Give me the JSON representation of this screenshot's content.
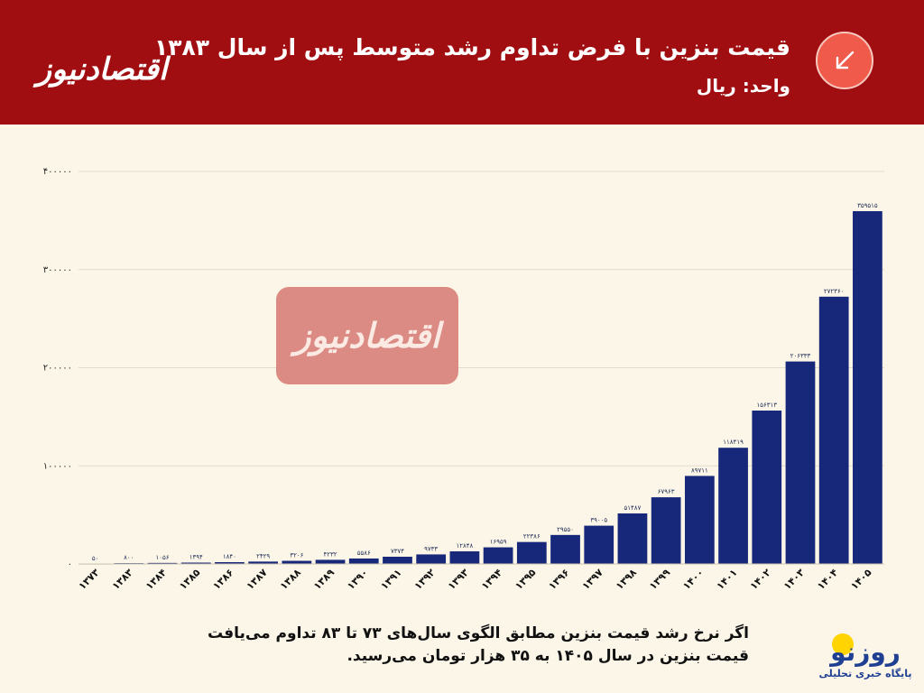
{
  "header": {
    "title": "قیمت بنزین با فرض تداوم رشد متوسط پس از سال ۱۳۸۳",
    "subtitle": "واحد: ریال",
    "logo_text": "اقتصادنیوز",
    "badge_icon": "arrow-down-left-icon"
  },
  "watermark": {
    "text": "اقتصادنیوز"
  },
  "caption": {
    "line1": "اگر نرخ رشد قیمت بنزین مطابق الگوی سال‌های ۷۳ تا ۸۳ تداوم می‌یافت",
    "line2": "قیمت بنزین در سال ۱۴۰۵ به ۳۵ هزار تومان می‌رسید."
  },
  "footer_logo": {
    "brand": "روزنو",
    "tagline": "پایگاه خبری تحلیلی"
  },
  "colors": {
    "header_bg": "#a10e12",
    "bar": "#17287a",
    "background": "#fbf6e8",
    "badge": "#ef5a4b"
  },
  "chart_data": {
    "type": "bar",
    "categories": [
      "۱۳۷۳",
      "۱۳۸۳",
      "۱۳۸۴",
      "۱۳۸۵",
      "۱۳۸۶",
      "۱۳۸۷",
      "۱۳۸۸",
      "۱۳۸۹",
      "۱۳۹۰",
      "۱۳۹۱",
      "۱۳۹۲",
      "۱۳۹۳",
      "۱۳۹۴",
      "۱۳۹۵",
      "۱۳۹۶",
      "۱۳۹۷",
      "۱۳۹۸",
      "۱۳۹۹",
      "۱۴۰۰",
      "۱۴۰۱",
      "۱۴۰۲",
      "۱۴۰۳",
      "۱۴۰۴",
      "۱۴۰۵"
    ],
    "values": [
      50,
      800,
      1056,
      1394,
      1840,
      2429,
      3206,
      4232,
      5586,
      7374,
      9733,
      12848,
      16959,
      22386,
      29550,
      39005,
      51487,
      67963,
      89711,
      118419,
      156313,
      206333,
      272360,
      359515
    ],
    "value_labels": [
      "۵۰",
      "۸۰۰",
      "۱۰۵۶",
      "۱۳۹۴",
      "۱۸۴۰",
      "۲۴۲۹",
      "۳۲۰۶",
      "۴۲۳۲",
      "۵۵۸۶",
      "۷۳۷۴",
      "۹۷۳۳",
      "۱۲۸۴۸",
      "۱۶۹۵۹",
      "۲۲۳۸۶",
      "۲۹۵۵۰",
      "۳۹۰۰۵",
      "۵۱۴۸۷",
      "۶۷۹۶۳",
      "۸۹۷۱۱",
      "۱۱۸۴۱۹",
      "۱۵۶۳۱۳",
      "۲۰۶۳۳۳",
      "۲۷۲۳۶۰",
      "۳۵۹۵۱۵"
    ],
    "ylim": [
      0,
      400000
    ],
    "yticks": [
      0,
      100000,
      200000,
      300000,
      400000
    ],
    "ytick_labels": [
      "۰",
      "۱۰۰۰۰۰",
      "۲۰۰۰۰۰",
      "۳۰۰۰۰۰",
      "۴۰۰۰۰۰"
    ],
    "grid": true,
    "legend": "none"
  }
}
